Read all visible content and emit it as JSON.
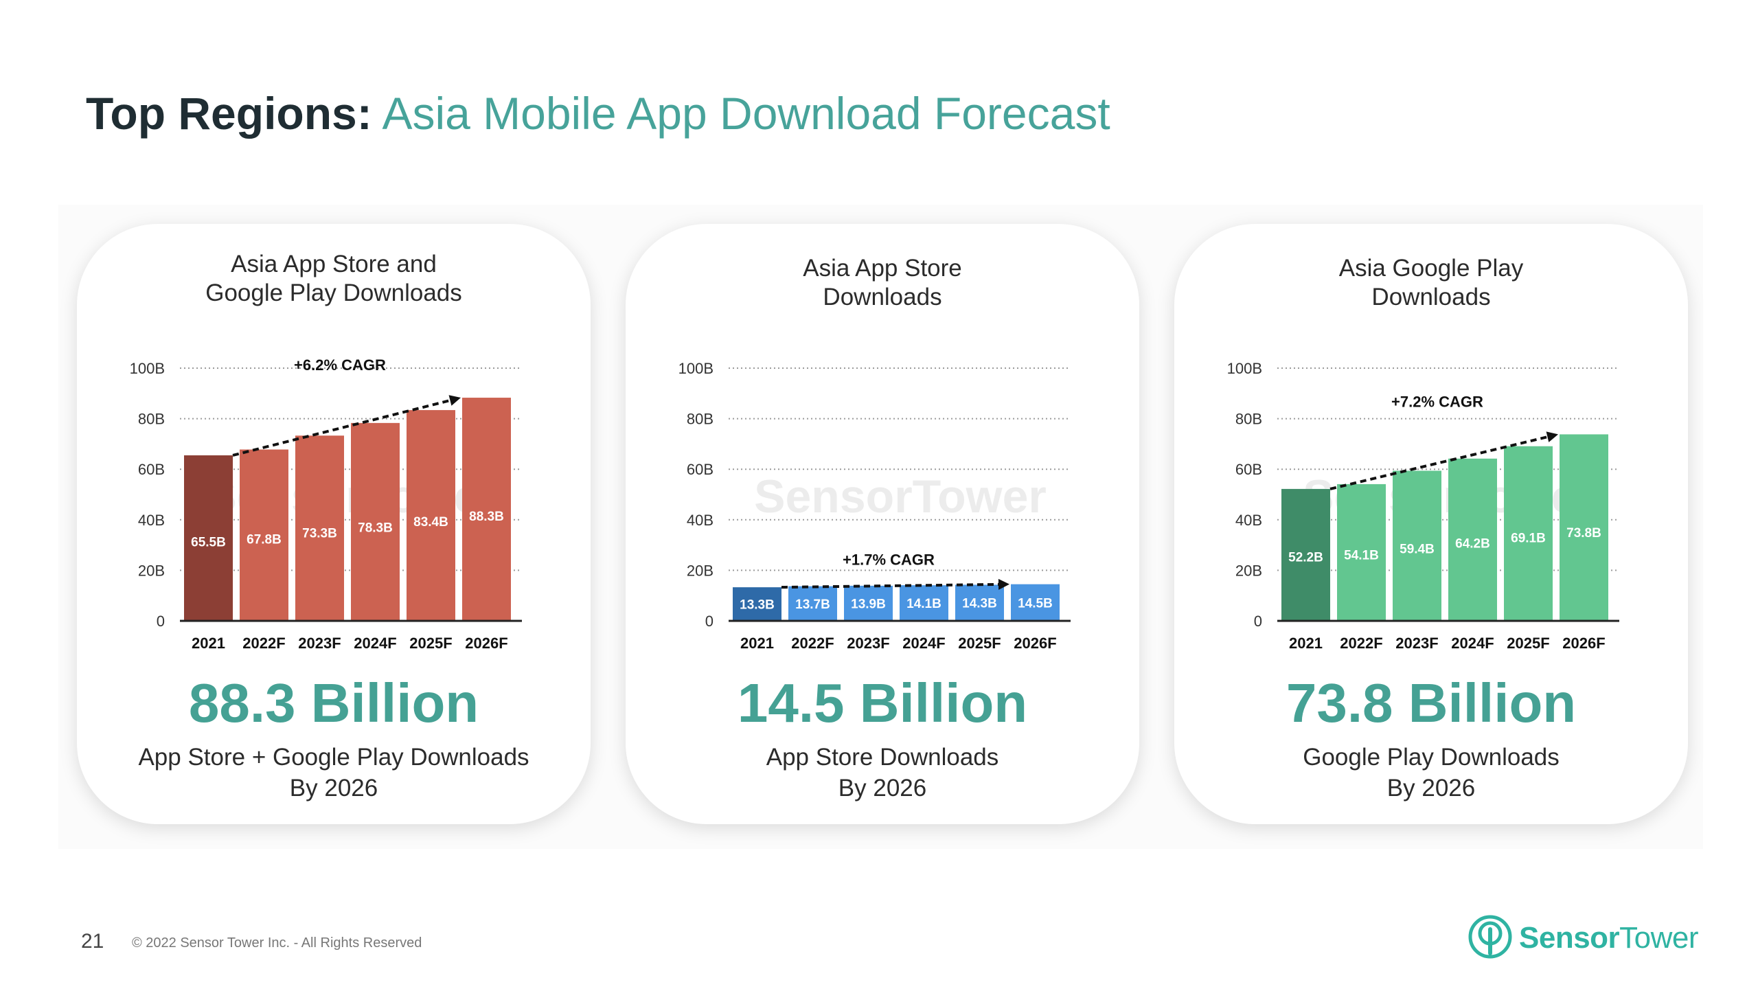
{
  "title": {
    "bold": "Top Regions:",
    "light": "Asia Mobile App Download Forecast"
  },
  "footer": {
    "page_number": "21",
    "copyright": "© 2022 Sensor Tower Inc. - All Rights Reserved",
    "logo_bold": "Sensor",
    "logo_light": "Tower"
  },
  "colors": {
    "accent_teal": "#45a194",
    "title_teal": "#47a39a",
    "logo_teal": "#2fb3a2"
  },
  "cards": [
    {
      "title_lines": [
        "Asia App Store and",
        "Google Play Downloads"
      ],
      "big_number": "88.3 Billion",
      "caption_lines": [
        "App Store + Google Play Downloads",
        "By 2026"
      ]
    },
    {
      "title_lines": [
        "Asia App Store",
        "Downloads"
      ],
      "big_number": "14.5 Billion",
      "caption_lines": [
        "App Store Downloads",
        "By 2026"
      ]
    },
    {
      "title_lines": [
        "Asia Google Play",
        "Downloads"
      ],
      "big_number": "73.8 Billion",
      "caption_lines": [
        "Google Play Downloads",
        "By 2026"
      ]
    }
  ],
  "chart_data": [
    {
      "type": "bar",
      "title": "Asia App Store and Google Play Downloads",
      "categories": [
        "2021",
        "2022F",
        "2023F",
        "2024F",
        "2025F",
        "2026F"
      ],
      "values": [
        65.5,
        67.8,
        73.3,
        78.3,
        83.4,
        88.3
      ],
      "value_labels": [
        "65.5B",
        "67.8B",
        "73.3B",
        "78.3B",
        "83.4B",
        "88.3B"
      ],
      "y_ticks": [
        "0",
        "20B",
        "40B",
        "60B",
        "80B",
        "100B"
      ],
      "ylim": [
        0,
        100
      ],
      "grid": true,
      "annotation": "+6.2% CAGR",
      "colors": {
        "first": "#8c3f35",
        "rest": "#cc6251"
      }
    },
    {
      "type": "bar",
      "title": "Asia App Store Downloads",
      "categories": [
        "2021",
        "2022F",
        "2023F",
        "2024F",
        "2025F",
        "2026F"
      ],
      "values": [
        13.3,
        13.7,
        13.9,
        14.1,
        14.3,
        14.5
      ],
      "value_labels": [
        "13.3B",
        "13.7B",
        "13.9B",
        "14.1B",
        "14.3B",
        "14.5B"
      ],
      "y_ticks": [
        "0",
        "20B",
        "40B",
        "60B",
        "80B",
        "100B"
      ],
      "ylim": [
        0,
        100
      ],
      "grid": true,
      "annotation": "+1.7% CAGR",
      "colors": {
        "first": "#2e6aa8",
        "rest": "#4a95e2"
      }
    },
    {
      "type": "bar",
      "title": "Asia Google Play Downloads",
      "categories": [
        "2021",
        "2022F",
        "2023F",
        "2024F",
        "2025F",
        "2026F"
      ],
      "values": [
        52.2,
        54.1,
        59.4,
        64.2,
        69.1,
        73.8
      ],
      "value_labels": [
        "52.2B",
        "54.1B",
        "59.4B",
        "64.2B",
        "69.1B",
        "73.8B"
      ],
      "y_ticks": [
        "0",
        "20B",
        "40B",
        "60B",
        "80B",
        "100B"
      ],
      "ylim": [
        0,
        100
      ],
      "grid": true,
      "annotation": "+7.2% CAGR",
      "colors": {
        "first": "#3f8c68",
        "rest": "#62c690"
      }
    }
  ]
}
